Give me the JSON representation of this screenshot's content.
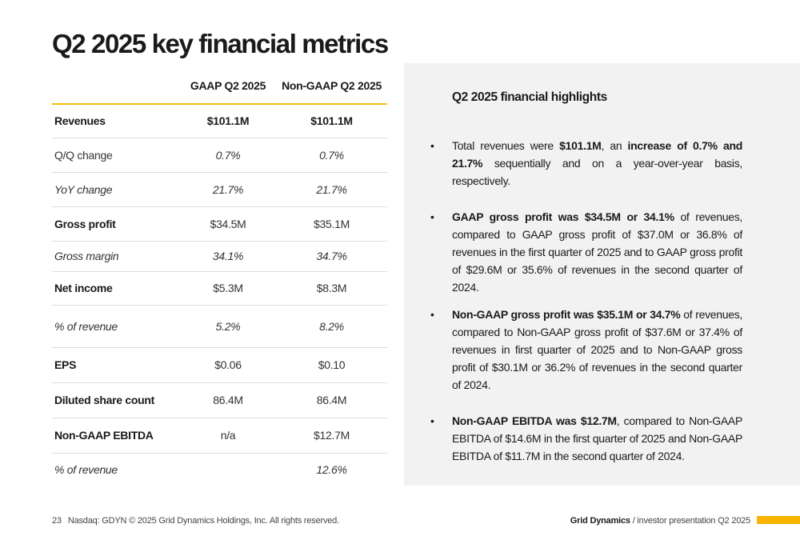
{
  "title": "Q2 2025 key financial metrics",
  "table": {
    "headers": [
      "",
      "GAAP Q2 2025",
      "Non-GAAP Q2 2025"
    ],
    "rows": [
      {
        "label": "Revenues",
        "gaap": "$101.1M",
        "nongaap": "$101.1M",
        "style": "bold"
      },
      {
        "label": "Q/Q change",
        "gaap": "0.7%",
        "nongaap": "0.7%",
        "style": "plain-italic-values"
      },
      {
        "label": "YoY change",
        "gaap": "21.7%",
        "nongaap": "21.7%",
        "style": "italic"
      },
      {
        "label": "Gross profit",
        "gaap": "$34.5M",
        "nongaap": "$35.1M",
        "style": "bold-label"
      },
      {
        "label": "Gross margin",
        "gaap": "34.1%",
        "nongaap": "34.7%",
        "style": "italic"
      },
      {
        "label": "Net income",
        "gaap": "$5.3M",
        "nongaap": "$8.3M",
        "style": "bold-label"
      },
      {
        "label": "% of revenue",
        "gaap": "5.2%",
        "nongaap": "8.2%",
        "style": "italic"
      },
      {
        "label": "EPS",
        "gaap": "$0.06",
        "nongaap": "$0.10",
        "style": "bold-label"
      },
      {
        "label": "Diluted share count",
        "gaap": "86.4M",
        "nongaap": "86.4M",
        "style": "bold-label"
      },
      {
        "label": "Non-GAAP EBITDA",
        "gaap": "n/a",
        "nongaap": "$12.7M",
        "style": "bold-label"
      },
      {
        "label": "% of revenue",
        "gaap": "",
        "nongaap": "12.6%",
        "style": "italic"
      }
    ]
  },
  "highlights": {
    "title": "Q2 2025 financial highlights",
    "bullets": [
      {
        "b1_pre": "Total revenues were ",
        "b1_strong1": "$101.1M",
        "b1_mid": ", an ",
        "b1_strong2": "increase of 0.7% and 21.7%",
        "b1_post": " sequentially and on a year-over-year basis, respectively."
      },
      {
        "strong": "GAAP gross profit was $34.5M or 34.1%",
        "text": " of revenues, compared to GAAP gross profit of $37.0M or 36.8% of revenues in the first quarter of 2025 and to GAAP gross profit of $29.6M or 35.6% of revenues in the second quarter of 2024."
      },
      {
        "strong": "Non-GAAP gross profit was $35.1M or 34.7%",
        "text": " of revenues, compared to Non-GAAP gross profit of $37.6M or 37.4% of revenues in first quarter of 2025 and to Non-GAAP gross profit of $30.1M or 36.2% of revenues in the second quarter of 2024."
      },
      {
        "strong": "Non-GAAP EBITDA was $12.7M",
        "text": ", compared to Non-GAAP EBITDA of $14.6M in the first quarter of 2025 and Non-GAAP EBITDA of $11.7M in the second quarter of 2024."
      }
    ]
  },
  "footer": {
    "page_number": "23",
    "legal": "Nasdaq: GDYN © 2025 Grid Dynamics Holdings, Inc. All rights reserved.",
    "brand": "Grid Dynamics",
    "separator": " / ",
    "deck": "investor presentation Q2 2025"
  },
  "colors": {
    "accent": "#f2c20f",
    "accent_bar": "#f7b500",
    "panel_bg": "#f2f2f2"
  }
}
